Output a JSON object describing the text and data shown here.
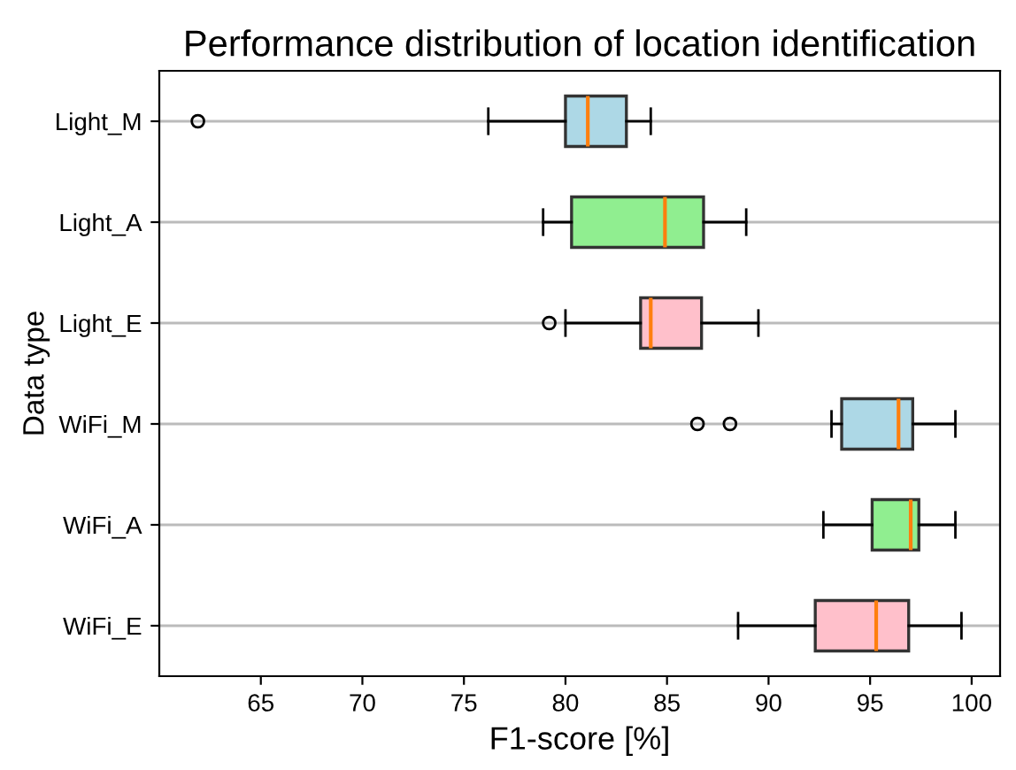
{
  "chart_data": {
    "type": "box",
    "orientation": "horizontal",
    "title": "Performance distribution of location identification",
    "xlabel": "F1-score [%]",
    "ylabel": "Data type",
    "categories": [
      "Light_M",
      "Light_A",
      "Light_E",
      "WiFi_M",
      "WiFi_A",
      "WiFi_E"
    ],
    "colors": [
      "#add8e6",
      "#90ee90",
      "#ffc0cb",
      "#add8e6",
      "#90ee90",
      "#ffc0cb"
    ],
    "boxes": [
      {
        "low": 76.2,
        "q1": 80.0,
        "median": 81.1,
        "q3": 83.0,
        "high": 84.2,
        "outliers": [
          61.9
        ]
      },
      {
        "low": 78.9,
        "q1": 80.3,
        "median": 84.9,
        "q3": 86.8,
        "high": 88.9
      },
      {
        "low": 80.0,
        "q1": 83.7,
        "median": 84.2,
        "q3": 86.7,
        "high": 89.5,
        "outliers": [
          79.2
        ]
      },
      {
        "low": 93.1,
        "q1": 93.6,
        "median": 96.4,
        "q3": 97.1,
        "high": 99.2,
        "outliers": [
          86.5,
          88.1
        ]
      },
      {
        "low": 92.7,
        "q1": 95.1,
        "median": 97.0,
        "q3": 97.4,
        "high": 99.2
      },
      {
        "low": 88.5,
        "q1": 92.3,
        "median": 95.3,
        "q3": 96.9,
        "high": 99.5
      }
    ],
    "xlim": [
      60.0,
      101.4
    ],
    "xticks": [
      65,
      70,
      75,
      80,
      85,
      90,
      95,
      100
    ],
    "grid": "y"
  }
}
